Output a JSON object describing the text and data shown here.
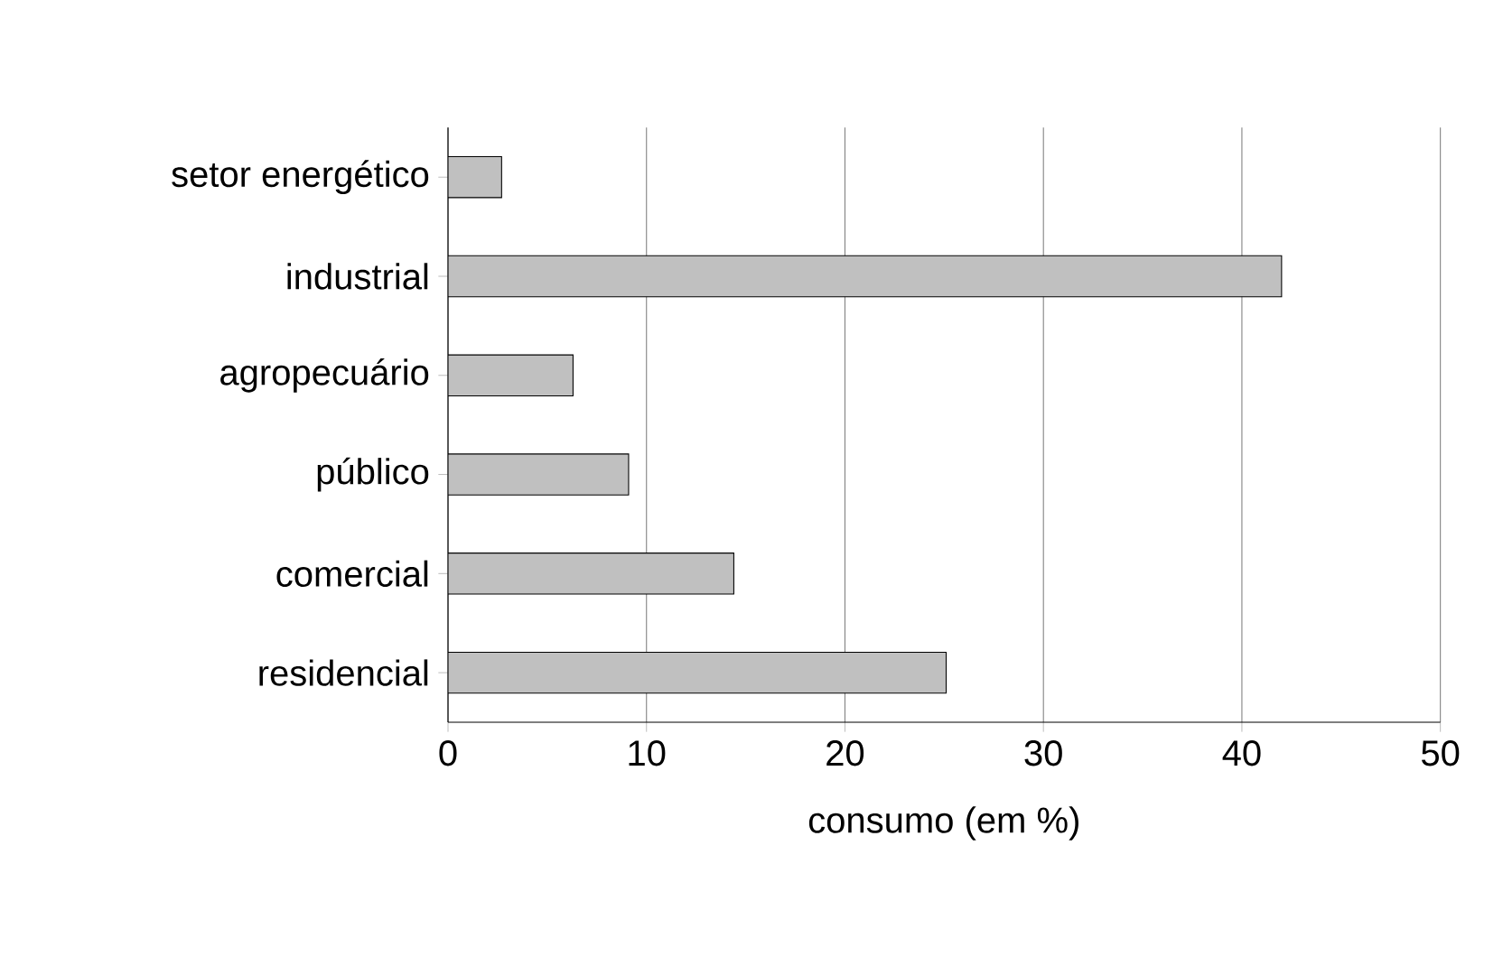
{
  "chart_data": {
    "type": "bar",
    "orientation": "horizontal",
    "xlabel": "consumo (em %)",
    "categories": [
      "setor energético",
      "industrial",
      "agropecuário",
      "público",
      "comercial",
      "residencial"
    ],
    "values": [
      2.7,
      42,
      6.3,
      9.1,
      14.4,
      25.1
    ],
    "color": "#c0c0c0",
    "xlim": [
      0,
      50
    ],
    "xticks": [
      0,
      10,
      20,
      30,
      40,
      50
    ],
    "grid": "x"
  }
}
